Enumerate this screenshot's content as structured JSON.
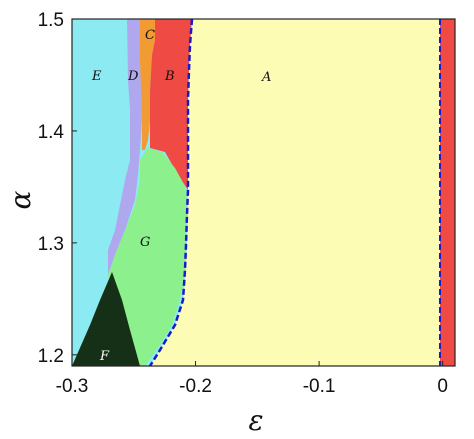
{
  "diagram": {
    "type": "phase-diagram",
    "x_axis": {
      "label": "ε",
      "range": [
        -0.3,
        0.01
      ],
      "ticks": [
        {
          "value": -0.3,
          "label": "-0.3"
        },
        {
          "value": -0.2,
          "label": "-0.2"
        },
        {
          "value": -0.1,
          "label": "-0.1"
        },
        {
          "value": 0,
          "label": "0"
        }
      ]
    },
    "y_axis": {
      "label": "α",
      "range": [
        1.19,
        1.5
      ],
      "ticks": [
        {
          "value": 1.2,
          "label": "1.2"
        },
        {
          "value": 1.3,
          "label": "1.3"
        },
        {
          "value": 1.4,
          "label": "1.4"
        },
        {
          "value": 1.5,
          "label": "1.5"
        }
      ]
    },
    "regions": [
      {
        "id": "A",
        "label": "A",
        "color": "#FCFCB4"
      },
      {
        "id": "B",
        "label": "B",
        "color": "#F04A45"
      },
      {
        "id": "C",
        "label": "C",
        "color": "#F29A34"
      },
      {
        "id": "D",
        "label": "D",
        "color": "#B0A8EE"
      },
      {
        "id": "E",
        "label": "E",
        "color": "#8CEBF2"
      },
      {
        "id": "F",
        "label": "F",
        "color": "#163018"
      },
      {
        "id": "G",
        "label": "G",
        "color": "#8CF08C"
      }
    ],
    "boundary_color": "#1A1AC8"
  }
}
